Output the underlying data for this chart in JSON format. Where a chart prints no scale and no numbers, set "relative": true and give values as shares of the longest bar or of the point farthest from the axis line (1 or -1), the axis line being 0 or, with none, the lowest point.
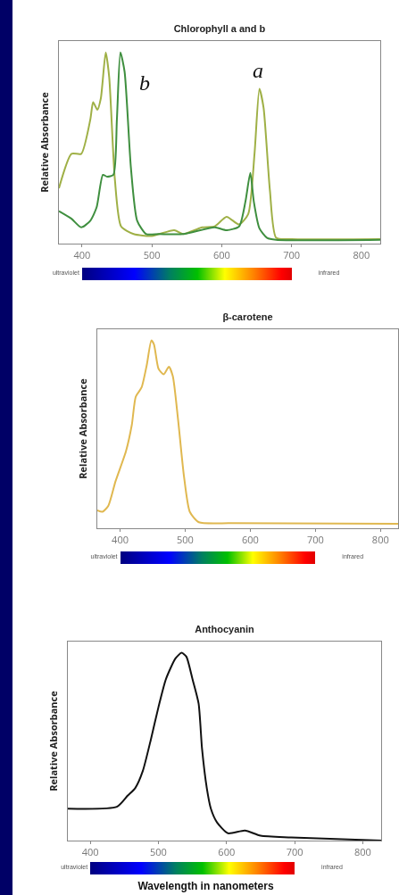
{
  "chart_data": [
    {
      "type": "line",
      "title": "Chlorophyll a and b",
      "ylabel": "Relative Absorbance",
      "relative": true,
      "xlim": [
        367,
        827
      ],
      "xticks": [
        400,
        500,
        600,
        700,
        800
      ],
      "series": [
        {
          "color": "#9fb046",
          "x": [
            367,
            385,
            399,
            412,
            416,
            422,
            427,
            434,
            439,
            447,
            456,
            474,
            500,
            532,
            545,
            572,
            590,
            607,
            625,
            638,
            647,
            654,
            660,
            669,
            678,
            700,
            827
          ],
          "values": [
            0.29,
            0.47,
            0.47,
            0.65,
            0.74,
            0.7,
            0.76,
            1.0,
            0.87,
            0.34,
            0.09,
            0.05,
            0.04,
            0.07,
            0.05,
            0.085,
            0.09,
            0.14,
            0.1,
            0.155,
            0.47,
            0.81,
            0.71,
            0.28,
            0.03,
            0.023,
            0.023
          ]
        },
        {
          "color": "#3f8f3f",
          "x": [
            367,
            385,
            399,
            412,
            421,
            430,
            436,
            445,
            450,
            455,
            461,
            470,
            479,
            492,
            510,
            545,
            590,
            607,
            625,
            634,
            641,
            646,
            654,
            665,
            678,
            827
          ],
          "values": [
            0.17,
            0.13,
            0.085,
            0.12,
            0.19,
            0.36,
            0.35,
            0.36,
            0.65,
            1.0,
            0.9,
            0.4,
            0.12,
            0.05,
            0.05,
            0.05,
            0.085,
            0.07,
            0.09,
            0.22,
            0.37,
            0.22,
            0.08,
            0.03,
            0.02,
            0.02
          ]
        }
      ],
      "annotations": [
        "b",
        "a",
        "ultraviolet",
        "infrared"
      ]
    },
    {
      "type": "line",
      "title": "β-carotene",
      "ylabel": "Relative Absorbance",
      "relative": true,
      "xlim": [
        365,
        827
      ],
      "xticks": [
        400,
        500,
        600,
        700,
        800
      ],
      "series": [
        {
          "color": "#e0b850",
          "x": [
            365,
            373,
            382,
            393,
            409,
            418,
            424,
            433,
            441,
            448,
            452,
            459,
            467,
            475,
            481,
            489,
            498,
            507,
            521,
            571,
            827
          ],
          "values": [
            0.096,
            0.088,
            0.12,
            0.25,
            0.41,
            0.55,
            0.7,
            0.75,
            0.87,
            1.0,
            0.98,
            0.85,
            0.82,
            0.86,
            0.81,
            0.58,
            0.28,
            0.088,
            0.032,
            0.027,
            0.024
          ]
        }
      ],
      "annotations": [
        "ultraviolet",
        "infrared"
      ]
    },
    {
      "type": "line",
      "title": "Anthocyanin",
      "ylabel": "Relative Absorbance",
      "xlabel": "Wavelength in nanometers",
      "relative": true,
      "xlim": [
        367,
        827
      ],
      "xticks": [
        400,
        500,
        600,
        700,
        800
      ],
      "series": [
        {
          "color": "#111111",
          "x": [
            367,
            439,
            455,
            466,
            477,
            489,
            500,
            511,
            525,
            534,
            541,
            550,
            559,
            564,
            571,
            577,
            586,
            602,
            627,
            650,
            695,
            827
          ],
          "values": [
            0.17,
            0.18,
            0.24,
            0.28,
            0.37,
            0.54,
            0.71,
            0.86,
            0.97,
            1.0,
            0.98,
            0.86,
            0.73,
            0.49,
            0.28,
            0.17,
            0.097,
            0.039,
            0.054,
            0.026,
            0.017,
            0.0
          ]
        }
      ],
      "annotations": [
        "ultraviolet",
        "infrared"
      ]
    }
  ]
}
